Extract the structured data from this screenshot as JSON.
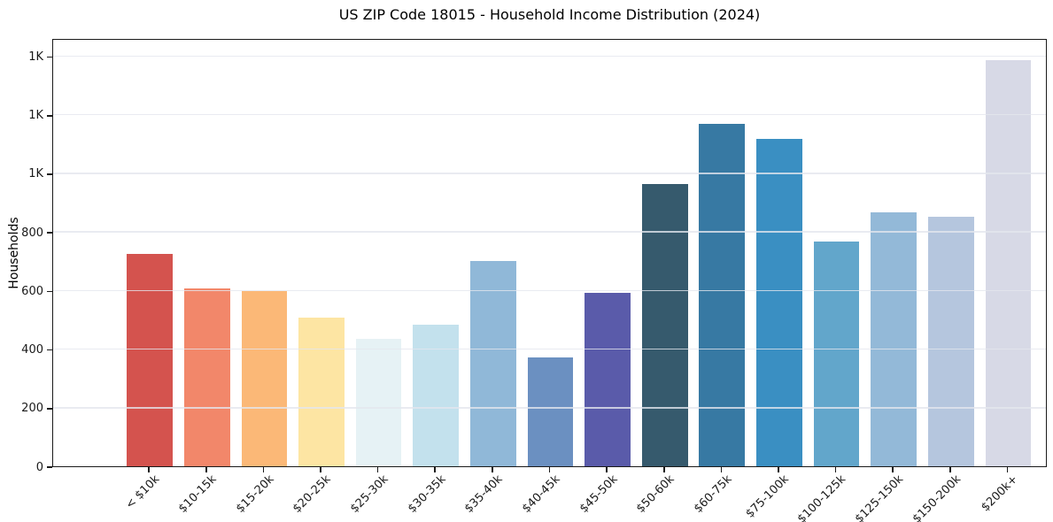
{
  "figure": {
    "title": "US ZIP Code 18015 - Household Income Distribution (2024)"
  },
  "chart_data": {
    "type": "bar",
    "title": "US ZIP Code 18015 - Household Income Distribution (2024)",
    "xlabel": "",
    "ylabel": "Households",
    "categories": [
      "< $10k",
      "$10-15k",
      "$15-20k",
      "$20-25k",
      "$25-30k",
      "$30-35k",
      "$35-40k",
      "$40-45k",
      "$45-50k",
      "$50-60k",
      "$60-75k",
      "$75-100k",
      "$100-125k",
      "$125-150k",
      "$150-200k",
      "$200k+"
    ],
    "values": [
      724,
      606,
      597,
      509,
      435,
      484,
      700,
      373,
      593,
      965,
      1168,
      1119,
      766,
      867,
      852,
      1386
    ],
    "bar_colors": [
      "#d4534e",
      "#f2876a",
      "#fbb877",
      "#fde5a3",
      "#e6f2f5",
      "#c3e1ed",
      "#90b8d8",
      "#6b90c1",
      "#5a5baa",
      "#365a6d",
      "#3779a3",
      "#3a8fc2",
      "#62a6cb",
      "#93b9d8",
      "#b5c6de",
      "#d7d9e6"
    ],
    "ylim": [
      0,
      1462
    ],
    "yticks": [
      {
        "value": 0,
        "label": "0"
      },
      {
        "value": 200,
        "label": "200"
      },
      {
        "value": 400,
        "label": "400"
      },
      {
        "value": 600,
        "label": "600"
      },
      {
        "value": 800,
        "label": "800"
      },
      {
        "value": 1000,
        "label": "1K"
      },
      {
        "value": 1200,
        "label": "1K"
      },
      {
        "value": 1400,
        "label": "1K"
      }
    ],
    "grid": "horizontal",
    "gridline_color": "#e9e9ef",
    "background": "#ffffff",
    "x_tick_rotation_deg": 45,
    "legend": "none"
  }
}
